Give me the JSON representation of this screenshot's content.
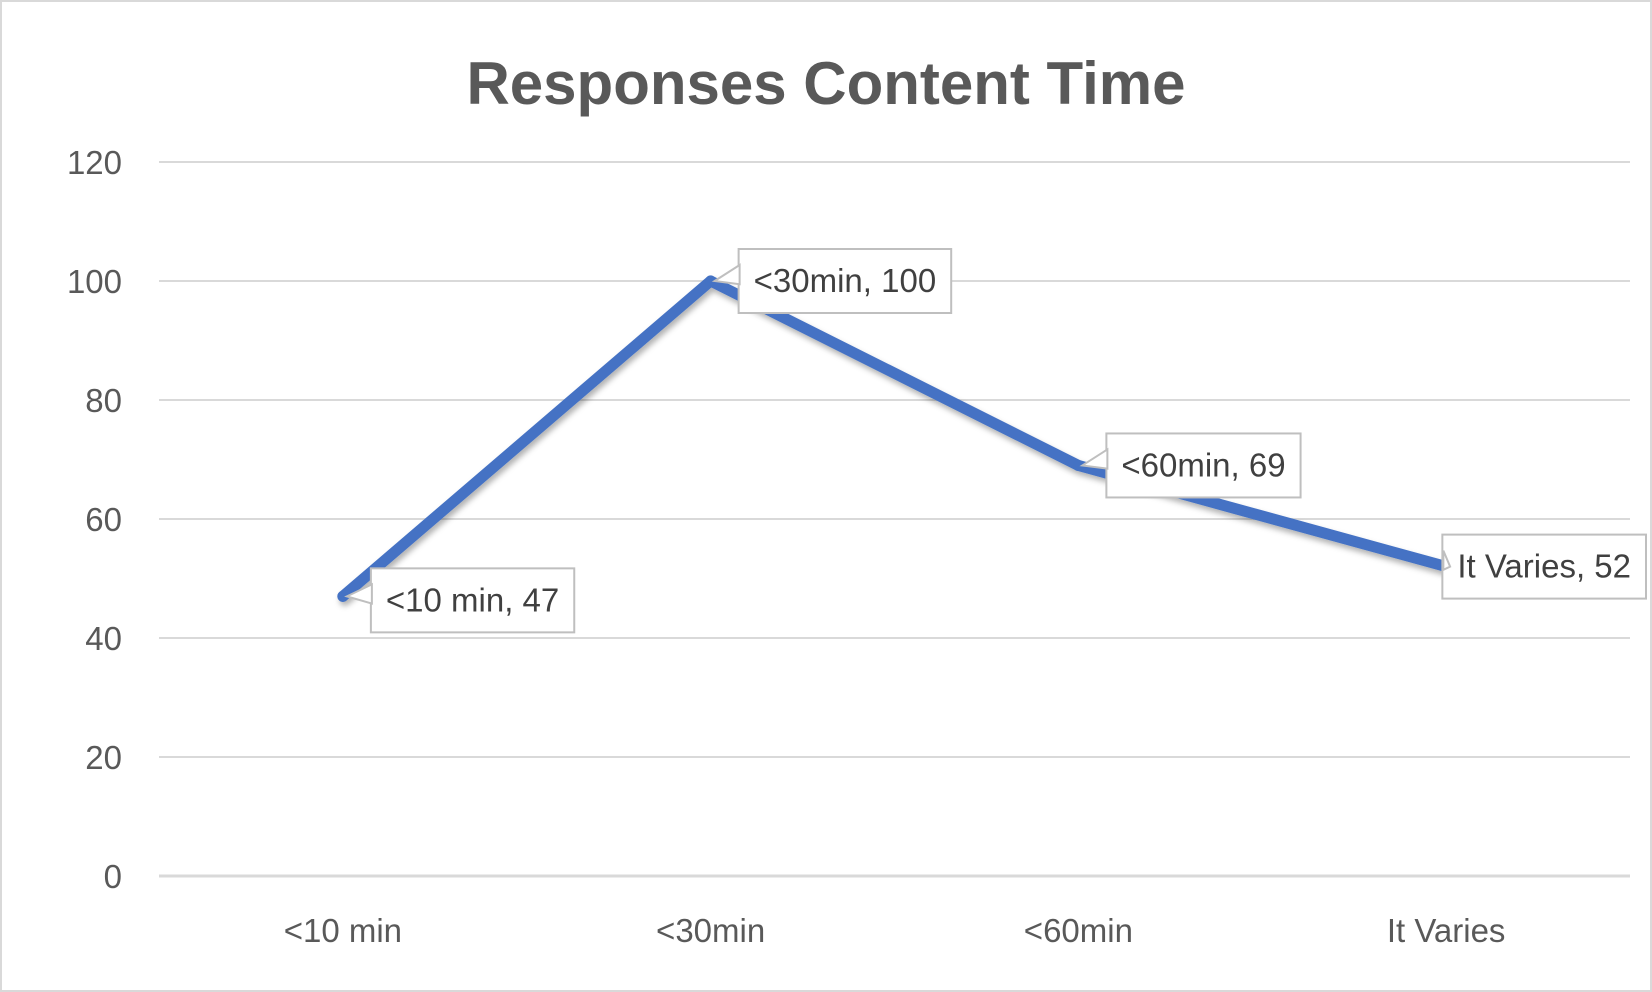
{
  "chart_data": {
    "type": "line",
    "title": "Responses Content Time",
    "xlabel": "",
    "ylabel": "",
    "categories": [
      "<10 min",
      "<30min",
      "<60min",
      "It Varies"
    ],
    "series": [
      {
        "values": [
          47,
          100,
          69,
          52
        ],
        "color": "#4472c4"
      }
    ],
    "data_labels": [
      "<10 min, 47",
      "<30min, 100",
      "<60min, 69",
      "It Varies, 52"
    ],
    "ylim": [
      0,
      120
    ],
    "yticks": [
      0,
      20,
      40,
      60,
      80,
      100,
      120
    ],
    "ytick_labels": [
      "0",
      "20",
      "40",
      "60",
      "80",
      "100",
      "120"
    ],
    "grid": true,
    "legend": "none"
  }
}
